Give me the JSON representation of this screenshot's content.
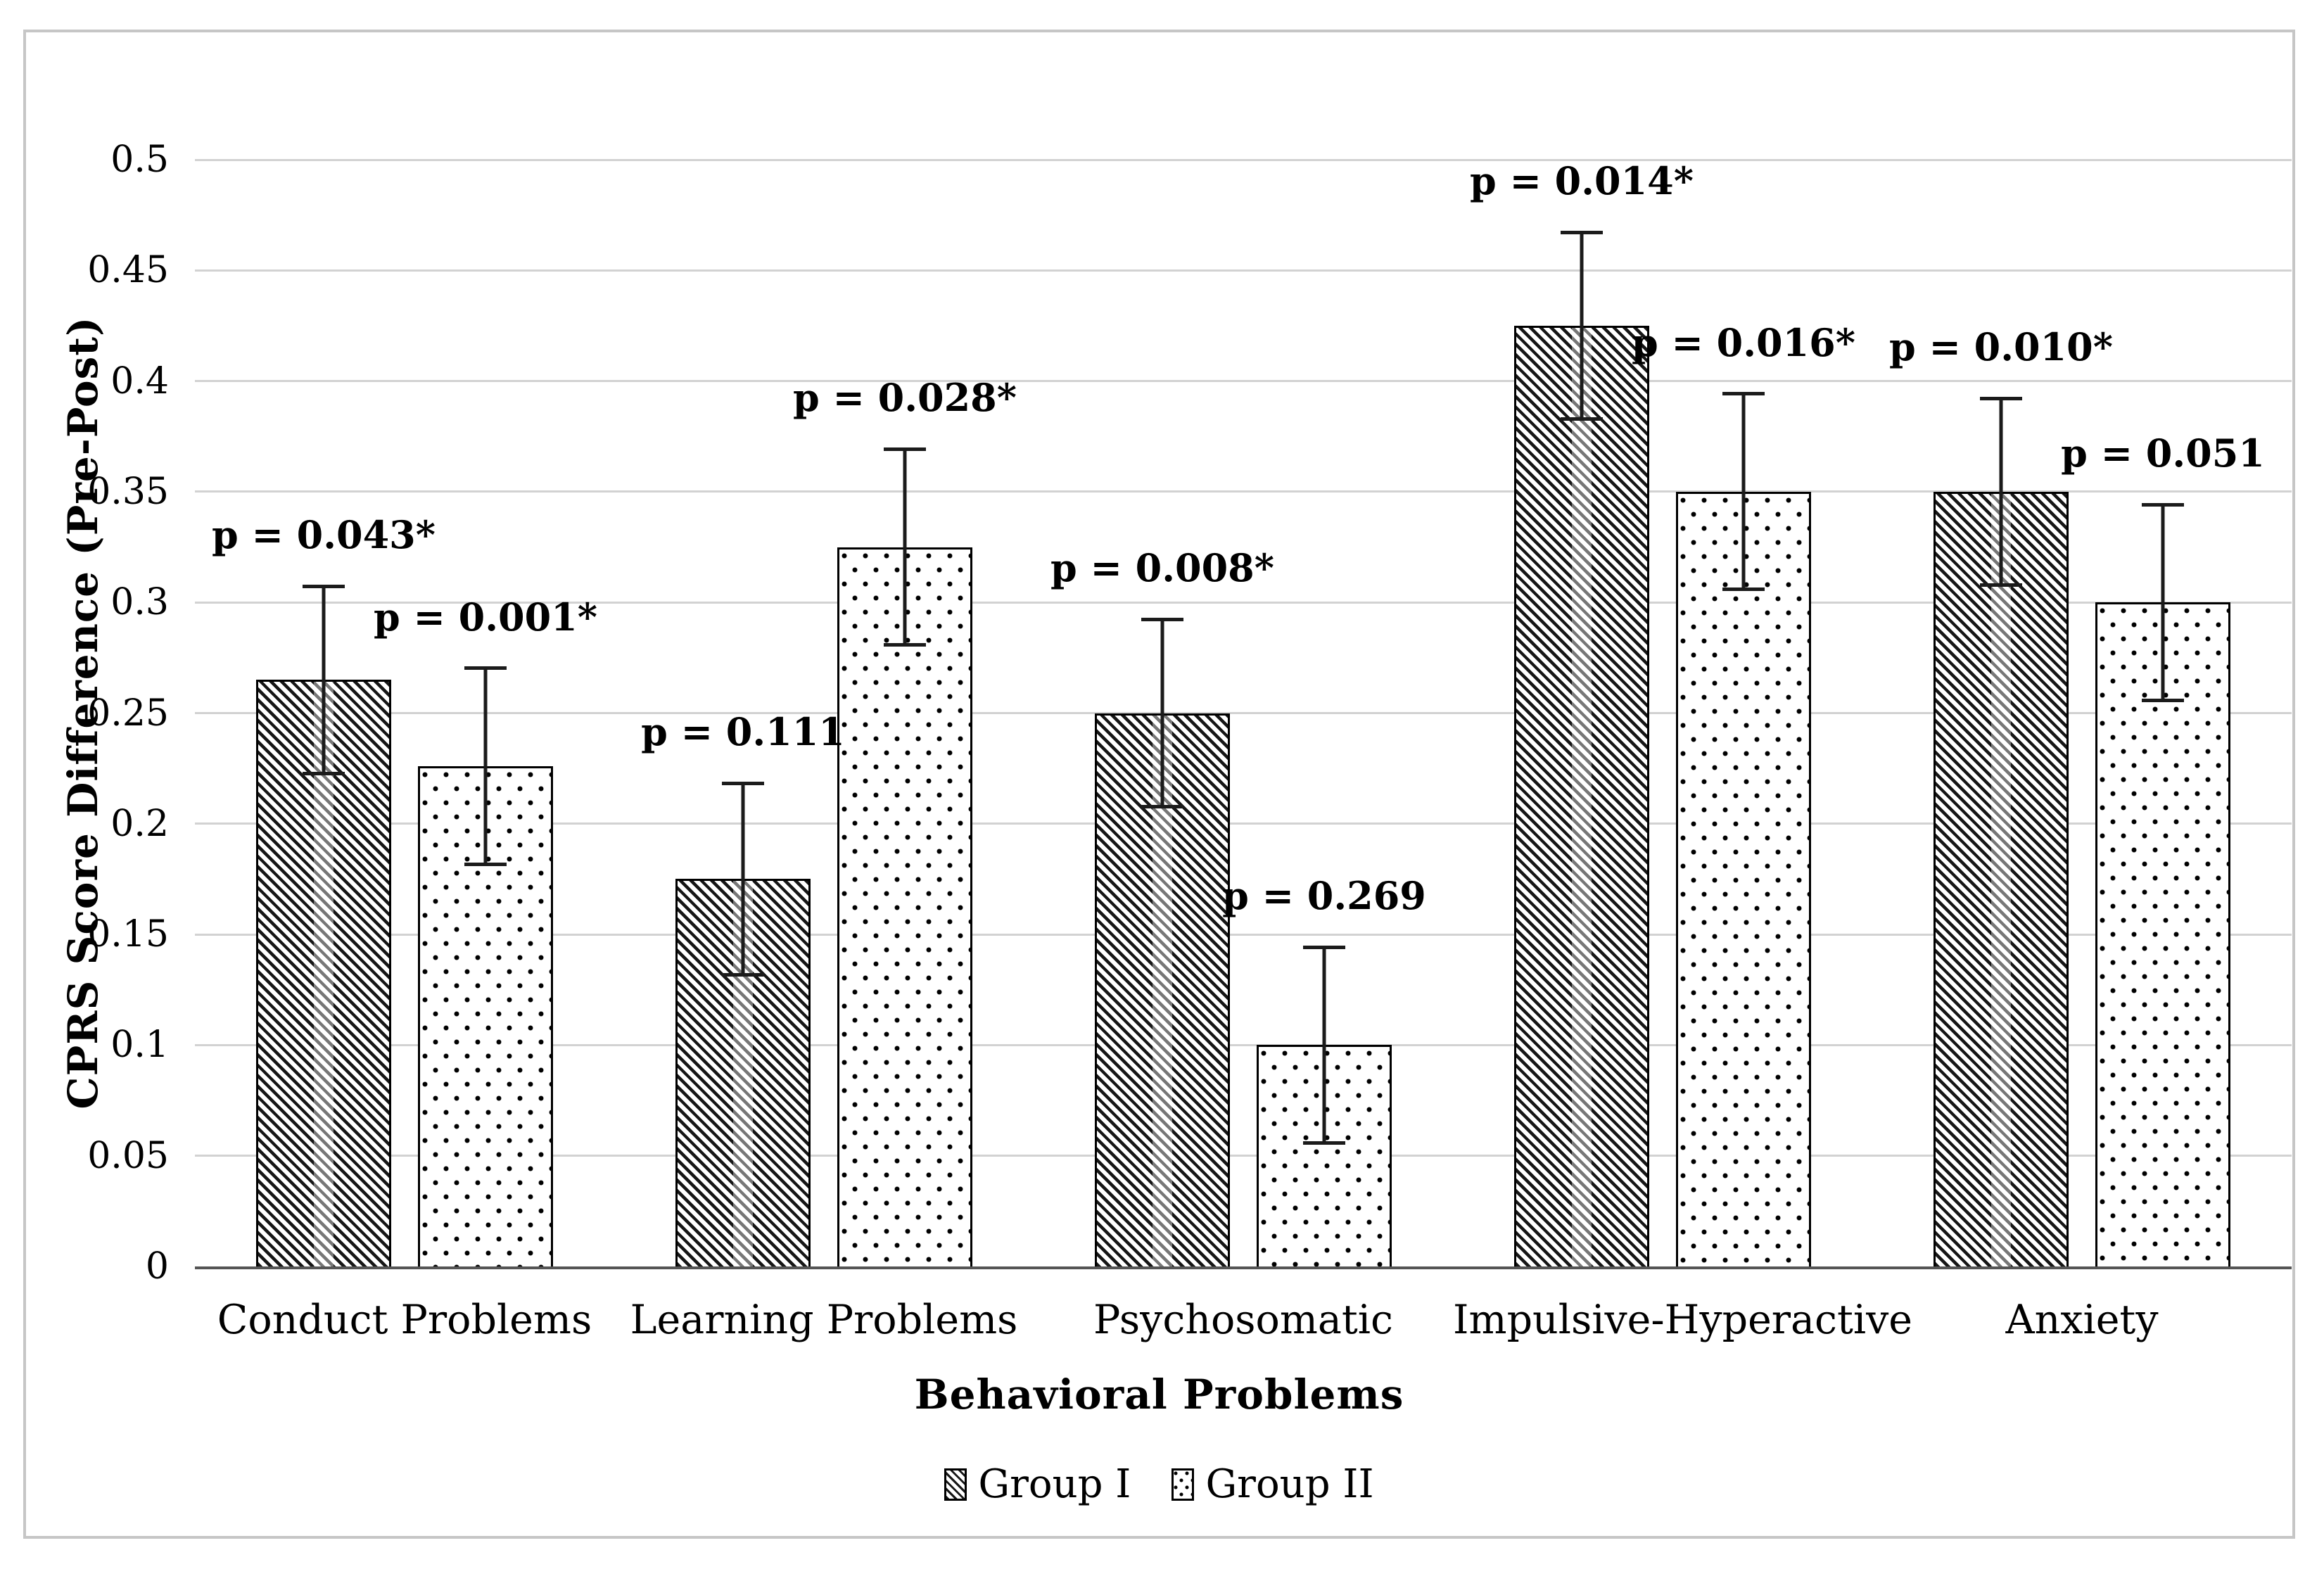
{
  "chart_data": {
    "type": "bar",
    "title": "",
    "xlabel": "Behavioral Problems",
    "ylabel": "CPRS Score Difference (Pre-Post)",
    "ylim": [
      0,
      0.5
    ],
    "ytick_step": 0.05,
    "ytick_values": [
      0,
      0.05,
      0.1,
      0.15,
      0.2,
      0.25,
      0.3,
      0.35,
      0.4,
      0.45,
      0.5
    ],
    "ytick_labels": [
      "0",
      "0.05",
      "0.1",
      "0.15",
      "0.2",
      "0.25",
      "0.3",
      "0.35",
      "0.4",
      "0.45",
      "0.5"
    ],
    "grid": true,
    "legend_position": "bottom-center",
    "categories": [
      "Conduct Problems",
      "Learning Problems",
      "Psychosomatic",
      "Impulsive-Hyperactive",
      "Anxiety"
    ],
    "series": [
      {
        "name": "Group I",
        "pattern": "diagonal-hatch",
        "values": [
          0.265,
          0.175,
          0.25,
          0.425,
          0.35
        ],
        "error": [
          0.043,
          0.044,
          0.043,
          0.043,
          0.043
        ],
        "p_labels": [
          "p = 0.043*",
          "p = 0.111",
          "p = 0.008*",
          "p = 0.014*",
          "p = 0.010*"
        ]
      },
      {
        "name": "Group II",
        "pattern": "dots",
        "values": [
          0.226,
          0.325,
          0.1,
          0.35,
          0.3
        ],
        "error": [
          0.045,
          0.045,
          0.045,
          0.045,
          0.045
        ],
        "p_labels": [
          "p = 0.001*",
          "p = 0.028*",
          "p = 0.269",
          "p = 0.016*",
          "p = 0.051"
        ]
      }
    ],
    "colors": {
      "bar_outline": "#000000",
      "gridline": "#d2d2d2",
      "baseline": "#555555",
      "frame_border": "#c6c6c6",
      "text": "#000000",
      "background": "#ffffff"
    }
  }
}
